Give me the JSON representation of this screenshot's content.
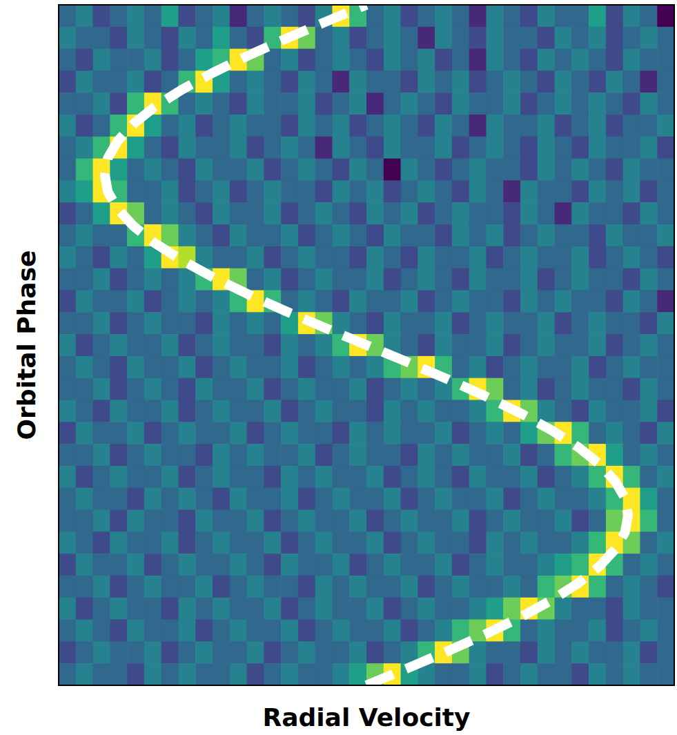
{
  "chart_data": {
    "type": "heatmap",
    "x_label": "Radial Velocity",
    "y_label": "Orbital Phase",
    "xlim": [
      -1,
      1
    ],
    "ylim": [
      0,
      1
    ],
    "tick_labels": false,
    "grid": false,
    "color_range": [
      0,
      9
    ],
    "cells": [
      [
        3,
        4,
        2,
        3,
        4,
        3,
        5,
        2,
        3,
        4,
        1,
        3,
        4,
        3,
        2,
        4,
        9,
        6,
        3,
        4,
        2,
        3,
        4,
        3,
        1,
        4,
        3,
        2,
        4,
        3,
        3,
        5,
        2,
        4,
        3,
        0
      ],
      [
        4,
        3,
        3,
        2,
        4,
        3,
        2,
        4,
        3,
        5,
        3,
        2,
        6,
        9,
        7,
        3,
        4,
        2,
        3,
        4,
        3,
        1,
        4,
        3,
        2,
        4,
        3,
        3,
        2,
        4,
        3,
        4,
        2,
        3,
        4,
        3
      ],
      [
        3,
        2,
        4,
        3,
        3,
        4,
        2,
        3,
        5,
        6,
        9,
        7,
        3,
        4,
        2,
        3,
        4,
        3,
        2,
        4,
        3,
        4,
        2,
        3,
        1,
        4,
        3,
        2,
        4,
        3,
        4,
        3,
        2,
        4,
        3,
        3
      ],
      [
        2,
        4,
        3,
        3,
        4,
        2,
        3,
        6,
        9,
        5,
        3,
        4,
        3,
        2,
        4,
        3,
        1,
        4,
        3,
        3,
        2,
        4,
        3,
        4,
        2,
        3,
        4,
        3,
        2,
        4,
        3,
        2,
        4,
        3,
        1,
        3
      ],
      [
        3,
        3,
        4,
        2,
        6,
        9,
        6,
        3,
        4,
        3,
        2,
        4,
        3,
        3,
        4,
        2,
        3,
        4,
        1,
        3,
        4,
        3,
        2,
        4,
        3,
        3,
        4,
        2,
        3,
        4,
        3,
        4,
        3,
        2,
        4,
        3
      ],
      [
        4,
        2,
        3,
        6,
        9,
        5,
        3,
        4,
        2,
        3,
        4,
        3,
        3,
        2,
        4,
        3,
        4,
        2,
        3,
        4,
        3,
        2,
        4,
        3,
        1,
        4,
        3,
        3,
        4,
        2,
        3,
        4,
        2,
        3,
        3,
        4
      ],
      [
        3,
        4,
        6,
        9,
        5,
        3,
        2,
        4,
        3,
        3,
        4,
        2,
        3,
        4,
        3,
        1,
        4,
        3,
        2,
        4,
        3,
        3,
        4,
        2,
        3,
        4,
        3,
        2,
        4,
        3,
        2,
        4,
        3,
        3,
        4,
        2
      ],
      [
        3,
        6,
        9,
        5,
        3,
        4,
        3,
        2,
        4,
        3,
        3,
        4,
        2,
        3,
        4,
        3,
        2,
        4,
        3,
        0,
        4,
        3,
        2,
        3,
        4,
        3,
        3,
        2,
        4,
        3,
        4,
        3,
        2,
        4,
        3,
        3
      ],
      [
        4,
        5,
        9,
        6,
        3,
        3,
        4,
        2,
        3,
        4,
        2,
        3,
        4,
        3,
        3,
        2,
        4,
        3,
        4,
        2,
        3,
        4,
        3,
        2,
        4,
        3,
        1,
        4,
        3,
        3,
        2,
        4,
        3,
        4,
        2,
        3
      ],
      [
        2,
        3,
        5,
        9,
        7,
        3,
        4,
        3,
        2,
        4,
        3,
        3,
        4,
        2,
        3,
        4,
        3,
        2,
        4,
        3,
        4,
        2,
        3,
        4,
        3,
        3,
        2,
        4,
        3,
        1,
        4,
        3,
        3,
        2,
        4,
        3
      ],
      [
        3,
        4,
        3,
        3,
        6,
        9,
        7,
        4,
        3,
        2,
        4,
        3,
        3,
        4,
        2,
        3,
        4,
        3,
        2,
        4,
        3,
        3,
        2,
        4,
        3,
        4,
        2,
        3,
        4,
        3,
        3,
        2,
        4,
        3,
        3,
        4
      ],
      [
        4,
        3,
        2,
        4,
        3,
        5,
        9,
        8,
        4,
        3,
        3,
        4,
        2,
        3,
        4,
        3,
        3,
        2,
        4,
        3,
        2,
        4,
        3,
        3,
        4,
        2,
        3,
        4,
        3,
        3,
        4,
        2,
        3,
        4,
        3,
        2
      ],
      [
        3,
        3,
        4,
        2,
        3,
        4,
        3,
        4,
        6,
        9,
        7,
        3,
        4,
        2,
        3,
        4,
        3,
        3,
        4,
        2,
        3,
        4,
        3,
        2,
        4,
        3,
        3,
        4,
        2,
        3,
        4,
        3,
        3,
        2,
        4,
        3
      ],
      [
        2,
        4,
        3,
        3,
        4,
        2,
        3,
        4,
        3,
        4,
        6,
        9,
        6,
        3,
        4,
        3,
        2,
        4,
        3,
        3,
        4,
        2,
        3,
        4,
        3,
        3,
        2,
        4,
        3,
        4,
        3,
        3,
        2,
        4,
        3,
        1
      ],
      [
        3,
        3,
        4,
        2,
        3,
        4,
        3,
        3,
        2,
        4,
        3,
        4,
        3,
        5,
        9,
        7,
        4,
        3,
        2,
        4,
        3,
        3,
        4,
        2,
        3,
        4,
        3,
        3,
        4,
        2,
        3,
        4,
        3,
        3,
        2,
        4
      ],
      [
        4,
        2,
        3,
        4,
        3,
        3,
        4,
        2,
        3,
        4,
        3,
        3,
        2,
        4,
        3,
        4,
        6,
        9,
        7,
        4,
        3,
        2,
        4,
        3,
        3,
        4,
        2,
        3,
        4,
        3,
        3,
        4,
        2,
        3,
        4,
        3
      ],
      [
        3,
        4,
        3,
        2,
        4,
        3,
        3,
        4,
        2,
        3,
        4,
        3,
        3,
        4,
        2,
        3,
        4,
        3,
        4,
        6,
        7,
        9,
        6,
        3,
        4,
        2,
        3,
        4,
        3,
        3,
        4,
        2,
        3,
        4,
        3,
        3
      ],
      [
        3,
        3,
        4,
        2,
        3,
        4,
        3,
        2,
        4,
        3,
        3,
        4,
        2,
        3,
        4,
        3,
        3,
        4,
        2,
        3,
        4,
        3,
        4,
        6,
        9,
        7,
        3,
        4,
        2,
        3,
        4,
        3,
        3,
        2,
        4,
        3
      ],
      [
        4,
        3,
        2,
        4,
        3,
        3,
        4,
        2,
        3,
        4,
        3,
        3,
        4,
        2,
        3,
        4,
        3,
        3,
        2,
        4,
        3,
        4,
        3,
        3,
        4,
        6,
        9,
        7,
        4,
        3,
        2,
        4,
        3,
        3,
        4,
        2
      ],
      [
        2,
        4,
        3,
        3,
        4,
        2,
        3,
        4,
        3,
        3,
        4,
        2,
        3,
        4,
        3,
        3,
        2,
        4,
        3,
        4,
        3,
        3,
        4,
        2,
        3,
        4,
        3,
        5,
        7,
        9,
        6,
        3,
        4,
        3,
        2,
        4
      ],
      [
        3,
        3,
        4,
        2,
        3,
        4,
        3,
        3,
        2,
        4,
        3,
        4,
        3,
        3,
        4,
        2,
        3,
        4,
        3,
        3,
        2,
        4,
        3,
        4,
        3,
        3,
        4,
        2,
        3,
        6,
        7,
        9,
        5,
        3,
        4,
        3
      ],
      [
        4,
        2,
        3,
        4,
        3,
        3,
        4,
        2,
        3,
        4,
        3,
        3,
        2,
        4,
        3,
        4,
        3,
        3,
        4,
        2,
        3,
        4,
        3,
        2,
        4,
        3,
        3,
        4,
        2,
        3,
        4,
        6,
        9,
        6,
        3,
        4
      ],
      [
        3,
        4,
        3,
        3,
        2,
        4,
        3,
        4,
        3,
        2,
        4,
        3,
        3,
        4,
        2,
        3,
        4,
        3,
        3,
        4,
        2,
        3,
        4,
        3,
        3,
        4,
        2,
        3,
        4,
        3,
        3,
        4,
        6,
        9,
        5,
        3
      ],
      [
        3,
        3,
        4,
        2,
        4,
        3,
        3,
        2,
        4,
        3,
        3,
        4,
        2,
        3,
        4,
        3,
        3,
        4,
        2,
        3,
        4,
        3,
        3,
        4,
        2,
        3,
        4,
        3,
        3,
        4,
        2,
        3,
        7,
        9,
        6,
        3
      ],
      [
        4,
        3,
        2,
        4,
        3,
        3,
        4,
        2,
        3,
        4,
        3,
        3,
        4,
        2,
        3,
        4,
        3,
        3,
        4,
        2,
        3,
        4,
        3,
        3,
        2,
        4,
        3,
        4,
        3,
        3,
        4,
        6,
        9,
        7,
        3,
        4
      ],
      [
        2,
        4,
        3,
        3,
        4,
        2,
        3,
        4,
        3,
        3,
        4,
        3,
        2,
        4,
        3,
        3,
        4,
        2,
        3,
        4,
        3,
        3,
        4,
        2,
        3,
        4,
        3,
        3,
        4,
        5,
        6,
        9,
        6,
        3,
        4,
        3
      ],
      [
        3,
        3,
        4,
        2,
        3,
        4,
        3,
        3,
        4,
        2,
        3,
        4,
        3,
        3,
        2,
        4,
        3,
        4,
        3,
        3,
        4,
        2,
        3,
        4,
        3,
        3,
        4,
        3,
        6,
        7,
        9,
        6,
        3,
        4,
        3,
        2
      ],
      [
        4,
        2,
        3,
        4,
        3,
        3,
        2,
        4,
        3,
        4,
        3,
        3,
        4,
        2,
        3,
        4,
        3,
        3,
        4,
        2,
        3,
        4,
        3,
        3,
        4,
        5,
        7,
        9,
        7,
        4,
        3,
        3,
        2,
        4,
        3,
        3
      ],
      [
        3,
        4,
        3,
        2,
        4,
        3,
        3,
        4,
        2,
        3,
        4,
        3,
        3,
        4,
        2,
        3,
        4,
        3,
        3,
        4,
        2,
        3,
        4,
        6,
        7,
        9,
        6,
        3,
        4,
        3,
        3,
        4,
        2,
        3,
        4,
        3
      ],
      [
        2,
        3,
        4,
        3,
        3,
        4,
        2,
        3,
        4,
        3,
        3,
        4,
        2,
        3,
        4,
        3,
        3,
        4,
        2,
        3,
        4,
        6,
        9,
        7,
        4,
        3,
        3,
        2,
        4,
        3,
        4,
        3,
        3,
        4,
        2,
        3
      ],
      [
        3,
        4,
        3,
        3,
        2,
        4,
        3,
        4,
        3,
        3,
        4,
        2,
        3,
        4,
        3,
        3,
        4,
        5,
        7,
        9,
        5,
        4,
        3,
        3,
        4,
        2,
        3,
        4,
        3,
        3,
        2,
        4,
        3,
        4,
        3,
        3
      ]
    ],
    "curve": {
      "color": "#ffffff",
      "line_style": "dashed",
      "y": [
        0,
        0.025,
        0.05,
        0.075,
        0.1,
        0.125,
        0.15,
        0.175,
        0.2,
        0.225,
        0.25,
        0.275,
        0.3,
        0.325,
        0.35,
        0.375,
        0.4,
        0.425,
        0.45,
        0.475,
        0.5,
        0.525,
        0.55,
        0.575,
        0.6,
        0.625,
        0.65,
        0.675,
        0.7,
        0.725,
        0.75,
        0.775,
        0.8,
        0.825,
        0.85,
        0.875,
        0.9,
        0.925,
        0.95,
        0.975,
        1
      ],
      "x": [
        0,
        0.133,
        0.263,
        0.386,
        0.5,
        0.601,
        0.688,
        0.757,
        0.808,
        0.84,
        0.85,
        0.84,
        0.808,
        0.757,
        0.688,
        0.601,
        0.5,
        0.386,
        0.263,
        0.133,
        0,
        -0.133,
        -0.263,
        -0.386,
        -0.5,
        -0.601,
        -0.688,
        -0.757,
        -0.808,
        -0.84,
        -0.85,
        -0.84,
        -0.808,
        -0.757,
        -0.688,
        -0.601,
        -0.5,
        -0.386,
        -0.263,
        -0.133,
        0
      ]
    }
  }
}
